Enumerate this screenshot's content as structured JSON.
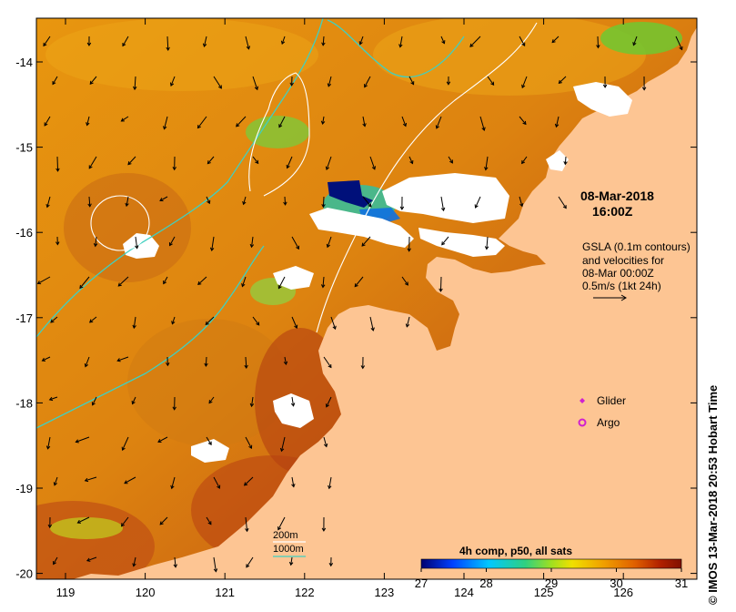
{
  "map": {
    "timestamp_date": "08-Mar-2018",
    "timestamp_time": "16:00Z",
    "gsla_note": [
      "GSLA (0.1m contours)",
      "and velocities for",
      "08-Mar 00:00Z",
      "0.5m/s (1kt 24h)"
    ],
    "legend": [
      {
        "label": "Glider",
        "color": "#d020d0",
        "symbol": "diamond"
      },
      {
        "label": "Argo",
        "color": "#d020d0",
        "symbol": "circle"
      }
    ],
    "depth_legend": [
      {
        "label": "200m",
        "color": "#ffffff"
      },
      {
        "label": "1000m",
        "color": "#40d0c0"
      }
    ],
    "colorbar": {
      "title": "4h comp, p50, all sats",
      "ticks": [
        "27",
        "28",
        "29",
        "30",
        "31"
      ],
      "range": [
        27,
        31
      ],
      "colors": [
        "#000070",
        "#0040ff",
        "#00c8ff",
        "#30d080",
        "#a0e020",
        "#f0e000",
        "#f0a000",
        "#e06000",
        "#b02000",
        "#801000"
      ]
    },
    "lon_ticks": [
      "119",
      "120",
      "121",
      "122",
      "123",
      "124",
      "125",
      "126"
    ],
    "lat_ticks": [
      "-14",
      "-15",
      "-16",
      "-17",
      "-18",
      "-19",
      "-20"
    ],
    "credit": "© IMOS 13-Mar-2018 20:53 Hobart Time",
    "colors": {
      "land": "#fdc593",
      "sea_warm": "#e08a10",
      "sea_hot": "#b84a10",
      "cloud": "#ffffff",
      "isobath_1000": "#40d0c0"
    }
  }
}
